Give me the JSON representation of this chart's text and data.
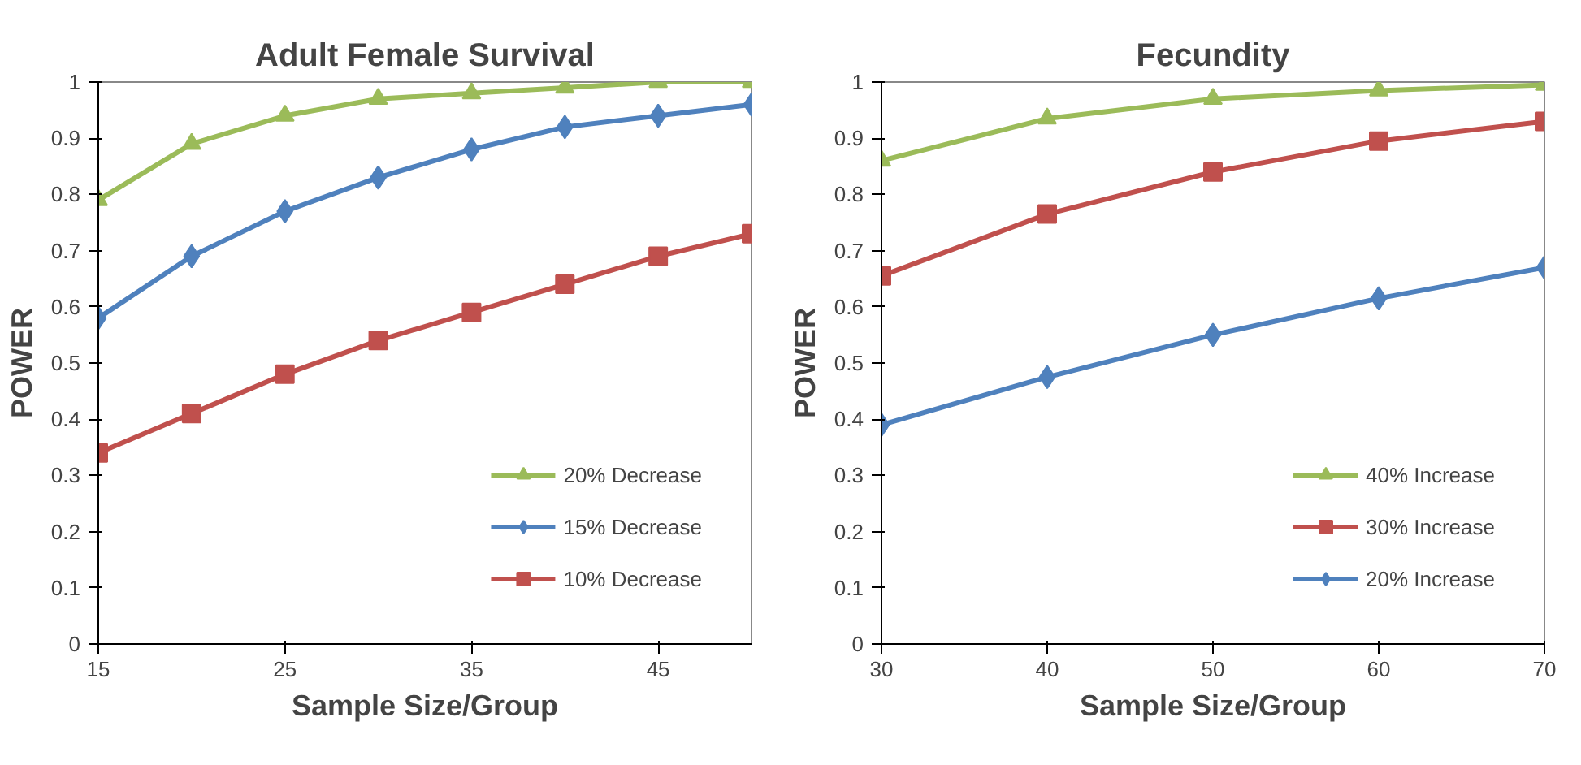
{
  "chart_data": [
    {
      "type": "line",
      "title": "Adult Female Survival",
      "xlabel": "Sample Size/Group",
      "ylabel": "POWER",
      "x": [
        15,
        20,
        25,
        30,
        35,
        40,
        45,
        50
      ],
      "xlim": [
        15,
        50
      ],
      "xticks": [
        15,
        25,
        35,
        45
      ],
      "ylim": [
        0,
        1
      ],
      "yticks": [
        0,
        0.1,
        0.2,
        0.3,
        0.4,
        0.5,
        0.6,
        0.7,
        0.8,
        0.9,
        1
      ],
      "grid": false,
      "legend": "bottom right",
      "series": [
        {
          "name": "20% Decrease",
          "color": "#9bbb59",
          "marker": "triangle",
          "values": [
            0.79,
            0.89,
            0.94,
            0.97,
            0.98,
            0.99,
            1.0,
            1.0
          ]
        },
        {
          "name": "15% Decrease",
          "color": "#4f81bd",
          "marker": "diamond",
          "values": [
            0.58,
            0.69,
            0.77,
            0.83,
            0.88,
            0.92,
            0.94,
            0.96
          ]
        },
        {
          "name": "10% Decrease",
          "color": "#c0504d",
          "marker": "square",
          "values": [
            0.34,
            0.41,
            0.48,
            0.54,
            0.59,
            0.64,
            0.69,
            0.73
          ]
        }
      ]
    },
    {
      "type": "line",
      "title": "Fecundity",
      "xlabel": "Sample Size/Group",
      "ylabel": "POWER",
      "x": [
        30,
        40,
        50,
        60,
        70
      ],
      "xlim": [
        30,
        70
      ],
      "xticks": [
        30,
        40,
        50,
        60,
        70
      ],
      "ylim": [
        0,
        1
      ],
      "yticks": [
        0,
        0.1,
        0.2,
        0.3,
        0.4,
        0.5,
        0.6,
        0.7,
        0.8,
        0.9,
        1
      ],
      "grid": false,
      "legend": "bottom right",
      "series": [
        {
          "name": "40% Increase",
          "color": "#9bbb59",
          "marker": "triangle",
          "values": [
            0.86,
            0.935,
            0.97,
            0.985,
            0.995
          ]
        },
        {
          "name": "30% Increase",
          "color": "#c0504d",
          "marker": "square",
          "values": [
            0.655,
            0.765,
            0.84,
            0.895,
            0.93
          ]
        },
        {
          "name": "20% Increase",
          "color": "#4f81bd",
          "marker": "diamond",
          "values": [
            0.39,
            0.475,
            0.55,
            0.615,
            0.67
          ]
        }
      ]
    }
  ]
}
